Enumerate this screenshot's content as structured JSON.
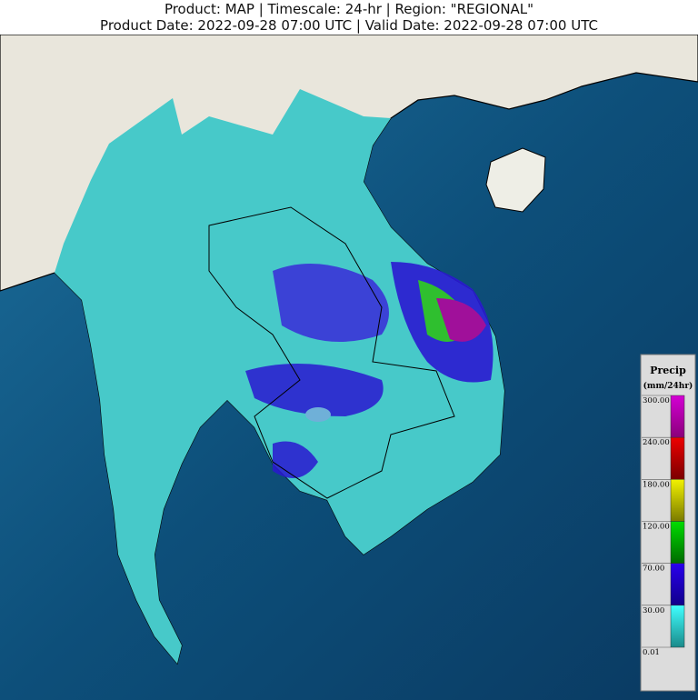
{
  "header": {
    "line1": "Product: MAP  |  Timescale: 24-hr  |  Region: \"REGIONAL\"",
    "line2": "Product Date: 2022-09-28 07:00 UTC  |  Valid Date: 2022-09-28 07:00 UTC"
  },
  "legend": {
    "title": "Precip",
    "units": "(mm/24hr)",
    "labels": [
      "300.00",
      "240.00",
      "180.00",
      "120.00",
      "70.00",
      "30.00",
      "0.01"
    ],
    "colors": [
      [
        "#d400d4",
        "#8a007a"
      ],
      [
        "#ee0000",
        "#7a0000"
      ],
      [
        "#f2f200",
        "#7a7a00"
      ],
      [
        "#00dd00",
        "#006a00"
      ],
      [
        "#2a00ee",
        "#10008a"
      ],
      [
        "#40ffff",
        "#1a8a8a"
      ]
    ]
  }
}
